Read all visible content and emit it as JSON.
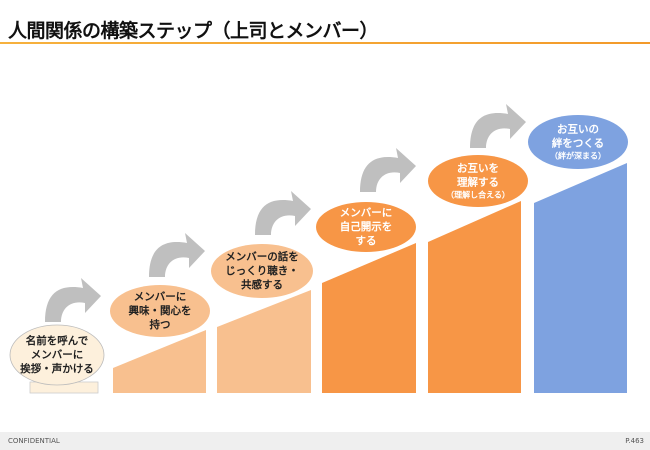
{
  "title": "人間関係の構築ステップ（上司とメンバー）",
  "steps": [
    {
      "lines": [
        "名前を呼んで",
        "メンバーに",
        "挨拶・声かける"
      ],
      "note": ""
    },
    {
      "lines": [
        "メンバーに",
        "興味・関心を",
        "持つ"
      ],
      "note": ""
    },
    {
      "lines": [
        "メンバーの話を",
        "じっくり聴き・",
        "共感する"
      ],
      "note": ""
    },
    {
      "lines": [
        "メンバーに",
        "自己開示を",
        "する"
      ],
      "note": ""
    },
    {
      "lines": [
        "お互いを",
        "理解する"
      ],
      "note": "（理解し合える）"
    },
    {
      "lines": [
        "お互いの",
        "絆をつくる"
      ],
      "note": "（絆が深まる）"
    }
  ],
  "colors": {
    "cream": "#fdf0dc",
    "peach": "#f8c08f",
    "orange": "#f79646",
    "blue": "#7ea2e0",
    "arrow": "#bfbfbf"
  },
  "footer": {
    "left": "CONFIDENTIAL",
    "right": "P.463"
  }
}
